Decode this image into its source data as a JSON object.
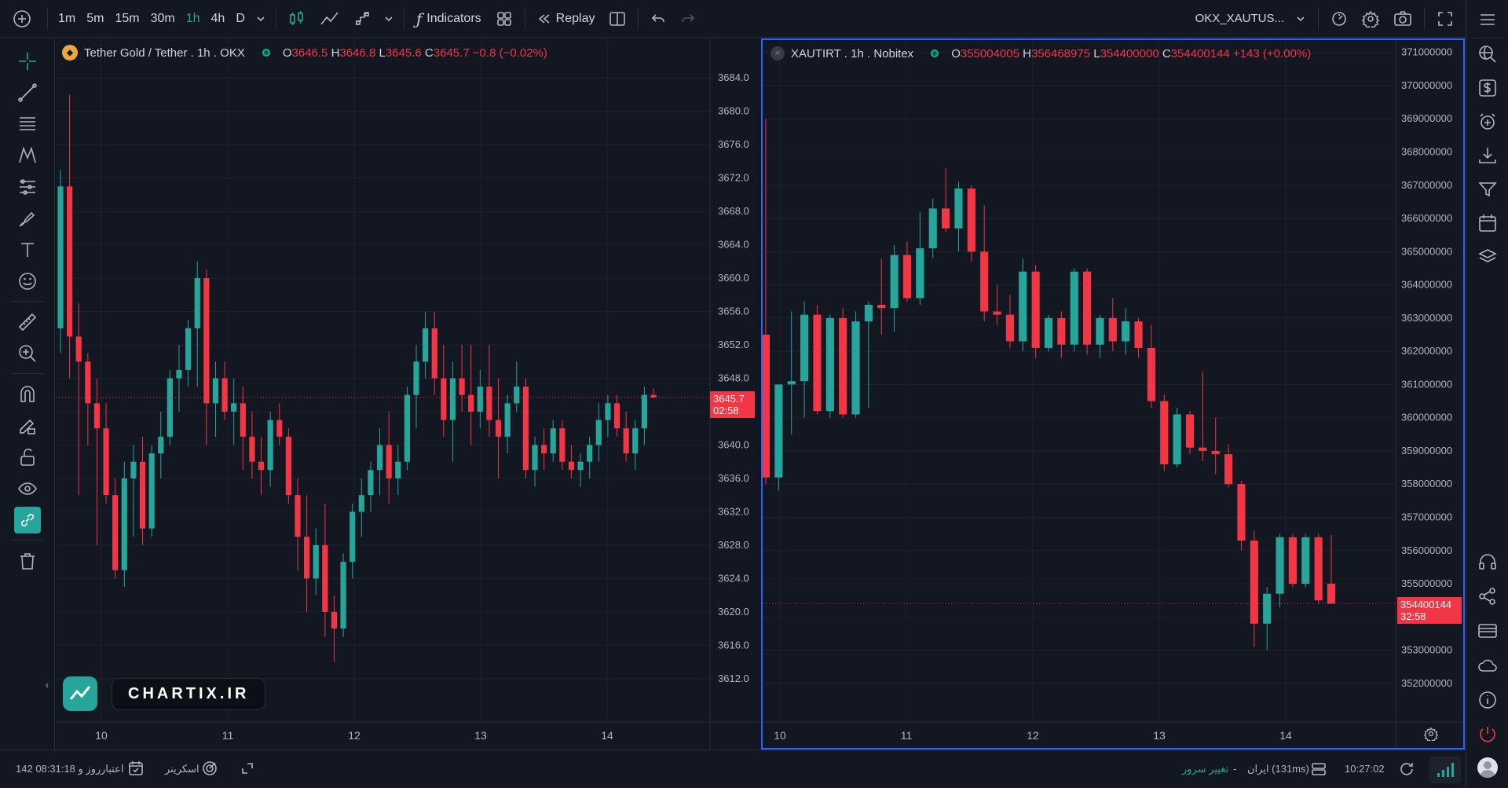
{
  "topbar": {
    "timeframes": [
      "1m",
      "5m",
      "15m",
      "30m",
      "1h",
      "4h",
      "D"
    ],
    "active_timeframe": "1h",
    "indicators_label": "Indicators",
    "replay_label": "Replay",
    "symbol_title": "OKX_XAUTUS..."
  },
  "left_chart": {
    "title": "Tether Gold / Tether . 1h . OKX",
    "ohlc": {
      "o_label": "O",
      "o": "3646.5",
      "h_label": "H",
      "h": "3646.8",
      "l_label": "L",
      "l": "3645.6",
      "c_label": "C",
      "c": "3645.7",
      "change": "−0.8 (−0.02%)"
    },
    "price_label": "3645.7",
    "countdown": "02:58",
    "y_ticks": [
      "3684.0",
      "3680.0",
      "3676.0",
      "3672.0",
      "3668.0",
      "3664.0",
      "3660.0",
      "3656.0",
      "3652.0",
      "3648.0",
      "3644.0",
      "3640.0",
      "3636.0",
      "3632.0",
      "3628.0",
      "3624.0",
      "3620.0",
      "3616.0",
      "3612.0"
    ],
    "x_ticks": [
      "10",
      "11",
      "12",
      "13",
      "14"
    ]
  },
  "right_chart": {
    "title": "XAUTIRT . 1h . Nobitex",
    "ohlc": {
      "o_label": "O",
      "o": "355004005",
      "h_label": "H",
      "h": "356468975",
      "l_label": "L",
      "l": "354400000",
      "c_label": "C",
      "c": "354400144",
      "change": "+143 (+0.00%)"
    },
    "price_label": "354400144",
    "countdown": "32:58",
    "y_ticks": [
      "371000000",
      "370000000",
      "369000000",
      "368000000",
      "367000000",
      "366000000",
      "365000000",
      "364000000",
      "363000000",
      "362000000",
      "361000000",
      "360000000",
      "359000000",
      "358000000",
      "357000000",
      "356000000",
      "355000000",
      "354000000",
      "353000000",
      "352000000"
    ],
    "x_ticks": [
      "10",
      "11",
      "12",
      "13",
      "14"
    ]
  },
  "watermark": {
    "text": "CHARTIX.IR"
  },
  "bottombar": {
    "credit_label": "اعتبار",
    "credit_value": "142 روز و 08:31:18",
    "screener_label": "اسکرینر",
    "server_change_label": "تغییر سرور",
    "dash": "-",
    "server_name": "ایران (131ms)",
    "clock": "10:27:02"
  },
  "colors": {
    "up": "#26a69a",
    "down": "#f23645",
    "bg": "#131722",
    "grid": "#1e2230",
    "axis_text": "#b2b5be",
    "accent": "#2962ff"
  },
  "chart_data": [
    {
      "type": "candlestick",
      "title": "Tether Gold / Tether . 1h . OKX",
      "ylim": [
        3610,
        3686
      ],
      "x_tick_labels": [
        "10",
        "11",
        "12",
        "13",
        "14"
      ],
      "series": [
        {
          "name": "Tether Gold / Tether",
          "ohlc": [
            [
              3654,
              3673,
              3651,
              3671
            ],
            [
              3671,
              3682,
              3648,
              3653
            ],
            [
              3653,
              3657,
              3634,
              3650
            ],
            [
              3650,
              3651,
              3640,
              3645
            ],
            [
              3645,
              3648,
              3628,
              3642
            ],
            [
              3642,
              3645,
              3633,
              3634
            ],
            [
              3634,
              3636,
              3624,
              3625
            ],
            [
              3625,
              3638,
              3623,
              3636
            ],
            [
              3636,
              3640,
              3629,
              3638
            ],
            [
              3638,
              3641,
              3628,
              3630
            ],
            [
              3630,
              3640,
              3629,
              3639
            ],
            [
              3639,
              3644,
              3636,
              3641
            ],
            [
              3641,
              3649,
              3640,
              3648
            ],
            [
              3648,
              3652,
              3644,
              3649
            ],
            [
              3649,
              3655,
              3647,
              3654
            ],
            [
              3654,
              3662,
              3647,
              3660
            ],
            [
              3660,
              3661,
              3640,
              3645
            ],
            [
              3645,
              3650,
              3641,
              3648
            ],
            [
              3648,
              3650,
              3643,
              3644
            ],
            [
              3644,
              3648,
              3640,
              3645
            ],
            [
              3645,
              3647,
              3637,
              3641
            ],
            [
              3641,
              3644,
              3636,
              3638
            ],
            [
              3638,
              3641,
              3634,
              3637
            ],
            [
              3637,
              3644,
              3635,
              3643
            ],
            [
              3643,
              3645,
              3640,
              3641
            ],
            [
              3641,
              3642,
              3633,
              3634
            ],
            [
              3634,
              3636,
              3625,
              3629
            ],
            [
              3629,
              3634,
              3620,
              3624
            ],
            [
              3624,
              3630,
              3622,
              3628
            ],
            [
              3628,
              3633,
              3617,
              3620
            ],
            [
              3620,
              3622,
              3614,
              3618
            ],
            [
              3618,
              3627,
              3617,
              3626
            ],
            [
              3626,
              3633,
              3624,
              3632
            ],
            [
              3632,
              3636,
              3629,
              3634
            ],
            [
              3634,
              3638,
              3632,
              3637
            ],
            [
              3637,
              3642,
              3634,
              3640
            ],
            [
              3640,
              3644,
              3633,
              3636
            ],
            [
              3636,
              3640,
              3634,
              3638
            ],
            [
              3638,
              3647,
              3637,
              3646
            ],
            [
              3646,
              3652,
              3642,
              3650
            ],
            [
              3650,
              3656,
              3648,
              3654
            ],
            [
              3654,
              3656,
              3646,
              3648
            ],
            [
              3648,
              3652,
              3641,
              3643
            ],
            [
              3643,
              3650,
              3638,
              3648
            ],
            [
              3648,
              3652,
              3644,
              3646
            ],
            [
              3646,
              3652,
              3640,
              3644
            ],
            [
              3644,
              3649,
              3642,
              3647
            ],
            [
              3647,
              3652,
              3641,
              3643
            ],
            [
              3643,
              3648,
              3636,
              3641
            ],
            [
              3641,
              3646,
              3639,
              3645
            ],
            [
              3645,
              3650,
              3644,
              3647
            ],
            [
              3647,
              3648,
              3636,
              3637
            ],
            [
              3637,
              3641,
              3635,
              3640
            ],
            [
              3640,
              3642,
              3637,
              3639
            ],
            [
              3639,
              3643,
              3638,
              3642
            ],
            [
              3642,
              3643,
              3637,
              3638
            ],
            [
              3638,
              3640,
              3636,
              3637
            ],
            [
              3637,
              3639,
              3635,
              3638
            ],
            [
              3638,
              3641,
              3636,
              3640
            ],
            [
              3640,
              3645,
              3638,
              3643
            ],
            [
              3643,
              3646,
              3641,
              3645
            ],
            [
              3645,
              3646,
              3641,
              3642
            ],
            [
              3642,
              3644,
              3638,
              3639
            ],
            [
              3639,
              3643,
              3637,
              3642
            ],
            [
              3642,
              3647,
              3640,
              3646
            ],
            [
              3646,
              3646.8,
              3645.6,
              3645.7
            ]
          ]
        }
      ],
      "last_price": 3645.7
    },
    {
      "type": "candlestick",
      "title": "XAUTIRT . 1h . Nobitex",
      "ylim": [
        351500000,
        371300000
      ],
      "x_tick_labels": [
        "10",
        "11",
        "12",
        "13",
        "14"
      ],
      "series": [
        {
          "name": "XAUTIRT",
          "ohlc": [
            [
              362500000,
              369000000,
              358000000,
              358200000
            ],
            [
              358200000,
              361000000,
              357800000,
              361000000
            ],
            [
              361000000,
              363200000,
              359500000,
              361100000
            ],
            [
              361100000,
              363500000,
              360000000,
              363100000
            ],
            [
              363100000,
              363400000,
              360100000,
              360200000
            ],
            [
              360200000,
              363100000,
              360000000,
              363000000
            ],
            [
              363000000,
              363300000,
              360000000,
              360100000
            ],
            [
              360100000,
              363200000,
              360000000,
              362900000
            ],
            [
              362900000,
              363500000,
              360300000,
              363400000
            ],
            [
              363400000,
              364800000,
              362500000,
              363300000
            ],
            [
              363300000,
              365200000,
              362600000,
              364900000
            ],
            [
              364900000,
              365300000,
              363500000,
              363600000
            ],
            [
              363600000,
              366200000,
              363400000,
              365100000
            ],
            [
              365100000,
              366600000,
              364800000,
              366300000
            ],
            [
              366300000,
              367500000,
              365600000,
              365700000
            ],
            [
              365700000,
              367100000,
              365000000,
              366900000
            ],
            [
              366900000,
              367000000,
              364700000,
              365000000
            ],
            [
              365000000,
              366400000,
              362900000,
              363200000
            ],
            [
              363200000,
              364000000,
              362800000,
              363100000
            ],
            [
              363100000,
              363700000,
              362100000,
              362300000
            ],
            [
              362300000,
              364800000,
              362000000,
              364400000
            ],
            [
              364400000,
              364600000,
              361800000,
              362100000
            ],
            [
              362100000,
              363100000,
              362000000,
              363000000
            ],
            [
              363000000,
              363200000,
              361800000,
              362200000
            ],
            [
              362200000,
              364500000,
              362000000,
              364400000
            ],
            [
              364400000,
              364500000,
              361900000,
              362200000
            ],
            [
              362200000,
              363100000,
              361800000,
              363000000
            ],
            [
              363000000,
              363600000,
              362000000,
              362300000
            ],
            [
              362300000,
              363300000,
              361900000,
              362900000
            ],
            [
              362900000,
              363000000,
              361800000,
              362100000
            ],
            [
              362100000,
              362800000,
              360300000,
              360500000
            ],
            [
              360500000,
              360700000,
              358400000,
              358600000
            ],
            [
              358600000,
              360300000,
              358500000,
              360100000
            ],
            [
              360100000,
              360200000,
              358900000,
              359100000
            ],
            [
              359100000,
              361400000,
              358700000,
              359000000
            ],
            [
              359000000,
              360000000,
              358300000,
              358900000
            ],
            [
              358900000,
              359200000,
              357900000,
              358000000
            ],
            [
              358000000,
              358100000,
              356000000,
              356300000
            ],
            [
              356300000,
              356600000,
              353100000,
              353800000
            ],
            [
              353800000,
              354900000,
              353000000,
              354700000
            ],
            [
              354700000,
              356500000,
              354300000,
              356400000
            ],
            [
              356400000,
              356500000,
              354900000,
              355000000
            ],
            [
              355000000,
              356500000,
              354900000,
              356400000
            ],
            [
              356400000,
              356500000,
              354400000,
              354500000
            ],
            [
              355004005,
              356468975,
              354400000,
              354400144
            ]
          ]
        }
      ],
      "last_price": 354400144
    }
  ]
}
